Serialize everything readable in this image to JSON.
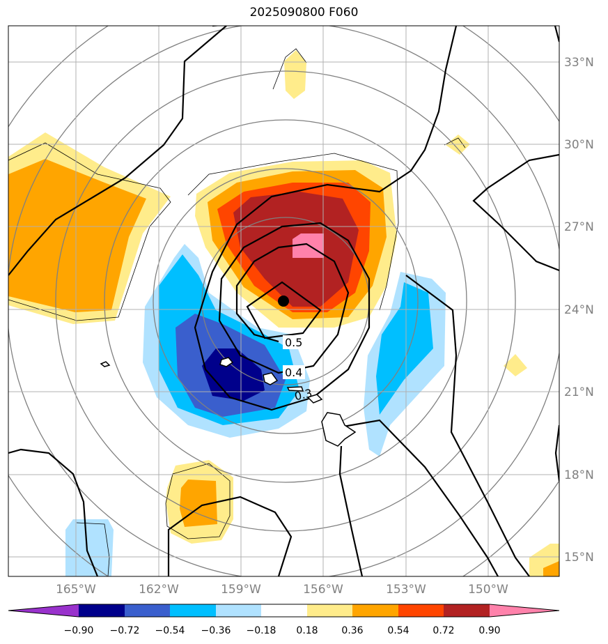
{
  "title": "2025090800 F060",
  "lat_labels": [
    "33°N",
    "30°N",
    "27°N",
    "24°N",
    "21°N",
    "18°N",
    "15°N"
  ],
  "lon_labels": [
    "165°W",
    "162°W",
    "159°W",
    "156°W",
    "153°W",
    "150°W"
  ],
  "contour_labels": [
    "0.5",
    "0.4",
    "0.3"
  ],
  "colorbar": {
    "ticks": [
      "−0.90",
      "−0.72",
      "−0.54",
      "−0.36",
      "−0.18",
      "0.18",
      "0.36",
      "0.54",
      "0.72",
      "0.90"
    ],
    "colors": [
      "#9932cc",
      "#00008b",
      "#3a5fcd",
      "#00bfff",
      "#b0e2ff",
      "#ffffff",
      "#ffec8b",
      "#ffa500",
      "#ff4500",
      "#b22222",
      "#ff82ab"
    ]
  },
  "storm_center": {
    "lat": 24.3,
    "lon": -157.5
  }
}
